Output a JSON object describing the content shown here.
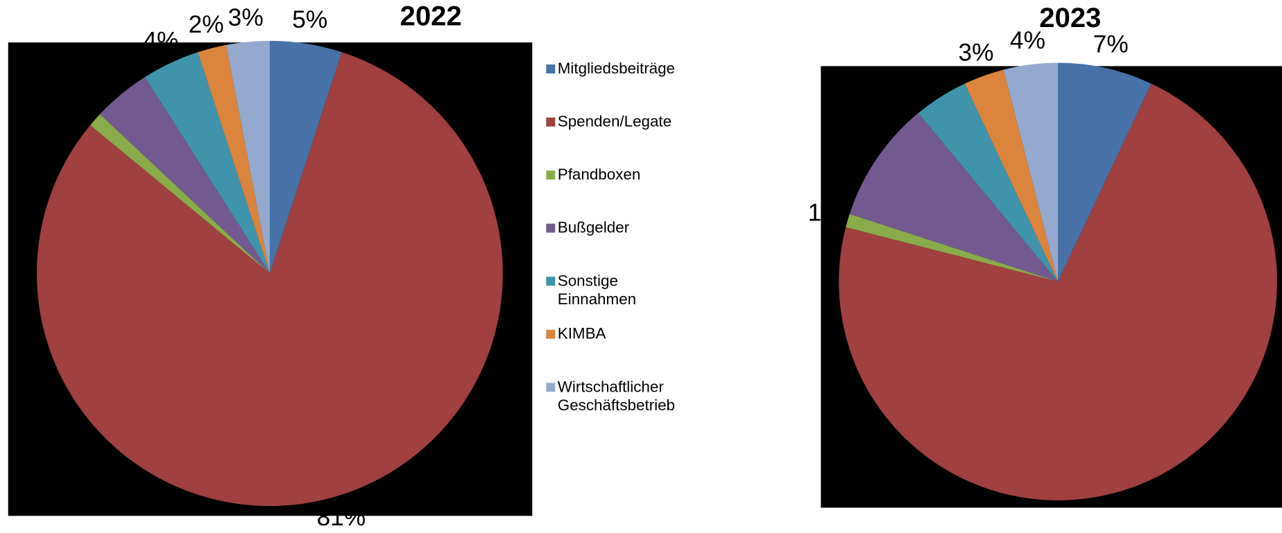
{
  "chart_data": [
    {
      "type": "pie",
      "title": "2022",
      "categories": [
        "Mitgliedsbeiträge",
        "Spenden/Legate",
        "Pfandboxen",
        "Bußgelder",
        "Sonstige\nEinnahmen",
        "KIMBA",
        "Wirtschaftlicher\nGeschäftsbetrieb"
      ],
      "values": [
        5,
        81,
        1,
        4,
        4,
        2,
        3
      ],
      "colors": [
        "#4672a8",
        "#a04040",
        "#8aab4a",
        "#725a91",
        "#3f94ab",
        "#db843d",
        "#94a9cd"
      ],
      "legend": true
    },
    {
      "type": "pie",
      "title": "2023",
      "categories": [
        "Mitgliedsbeiträge",
        "Spenden/Legate",
        "Pfandboxen",
        "Bußgelder",
        "Sonstige\nEinnahmen",
        "KIMBA",
        "Wirtschaftlicher\nGeschäftsbetrieb"
      ],
      "values": [
        7,
        72,
        1,
        9,
        4,
        3,
        4
      ],
      "colors": [
        "#4672a8",
        "#a04040",
        "#8aab4a",
        "#725a91",
        "#3f94ab",
        "#db843d",
        "#94a9cd"
      ],
      "legend": false
    }
  ]
}
